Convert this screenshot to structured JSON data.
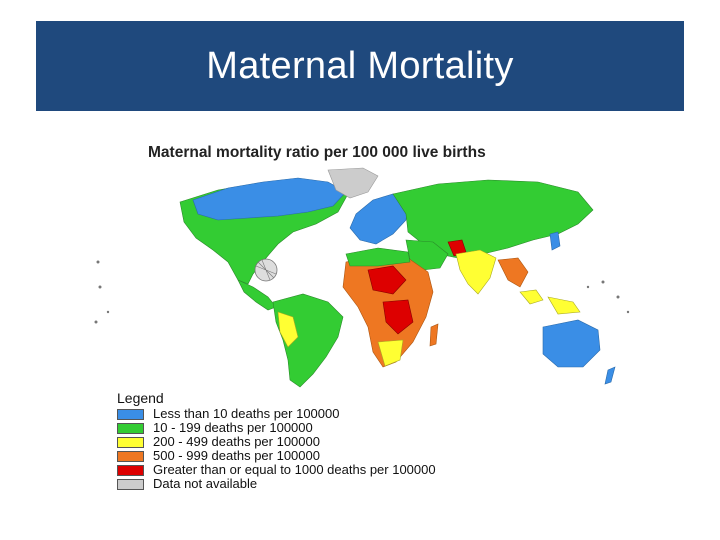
{
  "slide": {
    "title": "Maternal Mortality",
    "title_bar_color": "#1f497d"
  },
  "map": {
    "title": "Maternal mortality ratio per 100 000 live births",
    "legend_title": "Legend",
    "legend": [
      {
        "label": "Less than 10 deaths per 100000",
        "color": "#3a8ee6"
      },
      {
        "label": "10 - 199 deaths per 100000",
        "color": "#33cc33"
      },
      {
        "label": "200 - 499 deaths per 100000",
        "color": "#ffff33"
      },
      {
        "label": "500 - 999 deaths per 100000",
        "color": "#ee7722"
      },
      {
        "label": "Greater than or equal to 1000 deaths per 100000",
        "color": "#dd0000"
      },
      {
        "label": "Data not available",
        "color": "#cccccc"
      }
    ]
  }
}
